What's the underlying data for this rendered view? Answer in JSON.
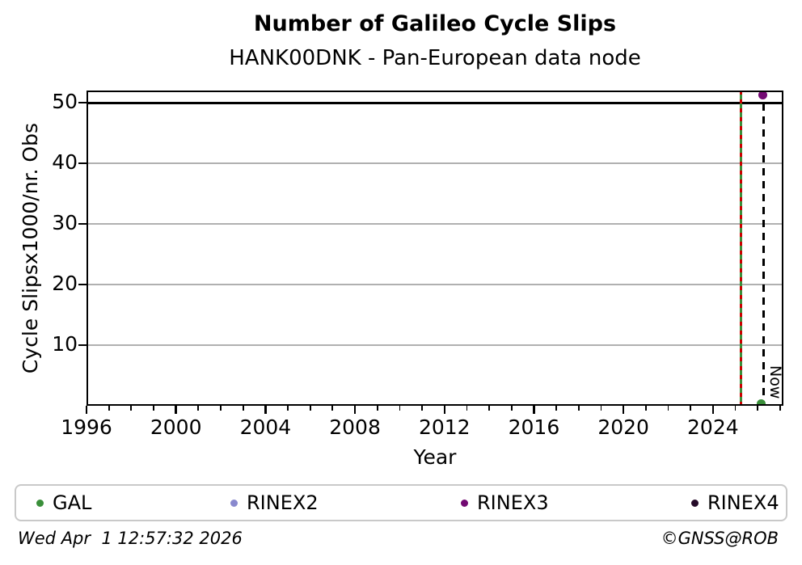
{
  "header": {
    "title": "Number of Galileo Cycle Slips",
    "subtitle": "HANK00DNK - Pan-European data node"
  },
  "footer": {
    "timestamp": "Wed Apr  1 12:57:32 2026",
    "copyright": "©GNSS@ROB"
  },
  "chart_data": {
    "type": "scatter",
    "title": "Number of Galileo Cycle Slips",
    "subtitle": "HANK00DNK - Pan-European data node",
    "xlabel": "Year",
    "ylabel": "Cycle Slipsx1000/nr. Obs",
    "xlim": [
      1996,
      2027.15
    ],
    "ylim": [
      0,
      52
    ],
    "xticks": {
      "major": [
        1996,
        2000,
        2004,
        2008,
        2012,
        2016,
        2020,
        2024
      ],
      "minor_step": 1,
      "minor_range": [
        1996,
        2027
      ]
    },
    "yticks": {
      "major": [
        10,
        20,
        30,
        40,
        50
      ]
    },
    "grid": {
      "horizontal": true,
      "color": "#b0b0b0"
    },
    "hlines": [
      {
        "y": 50,
        "color": "#000000",
        "style": "solid",
        "name": "max-line"
      }
    ],
    "vlines": [
      {
        "x": 2025.25,
        "style": "green-solid-red-dashed",
        "colors": [
          "#3a8f3a",
          "#cc0000"
        ],
        "name": "event-line",
        "label": ""
      },
      {
        "x": 2026.25,
        "style": "black-dashed",
        "colors": [
          "#000000"
        ],
        "name": "now-line",
        "label": "Now"
      }
    ],
    "series": [
      {
        "name": "GAL",
        "color": "#3a8f3a",
        "points": [
          {
            "x": 2026.17,
            "y": 0.3
          }
        ]
      },
      {
        "name": "RINEX2",
        "color": "#8989ce",
        "points": []
      },
      {
        "name": "RINEX3",
        "color": "#720972",
        "points": [
          {
            "x": 2026.22,
            "y": 51.2
          }
        ]
      },
      {
        "name": "RINEX4",
        "color": "#250a28",
        "points": []
      }
    ],
    "legend": {
      "position": "bottom",
      "entries": [
        "GAL",
        "RINEX2",
        "RINEX3",
        "RINEX4"
      ]
    }
  }
}
